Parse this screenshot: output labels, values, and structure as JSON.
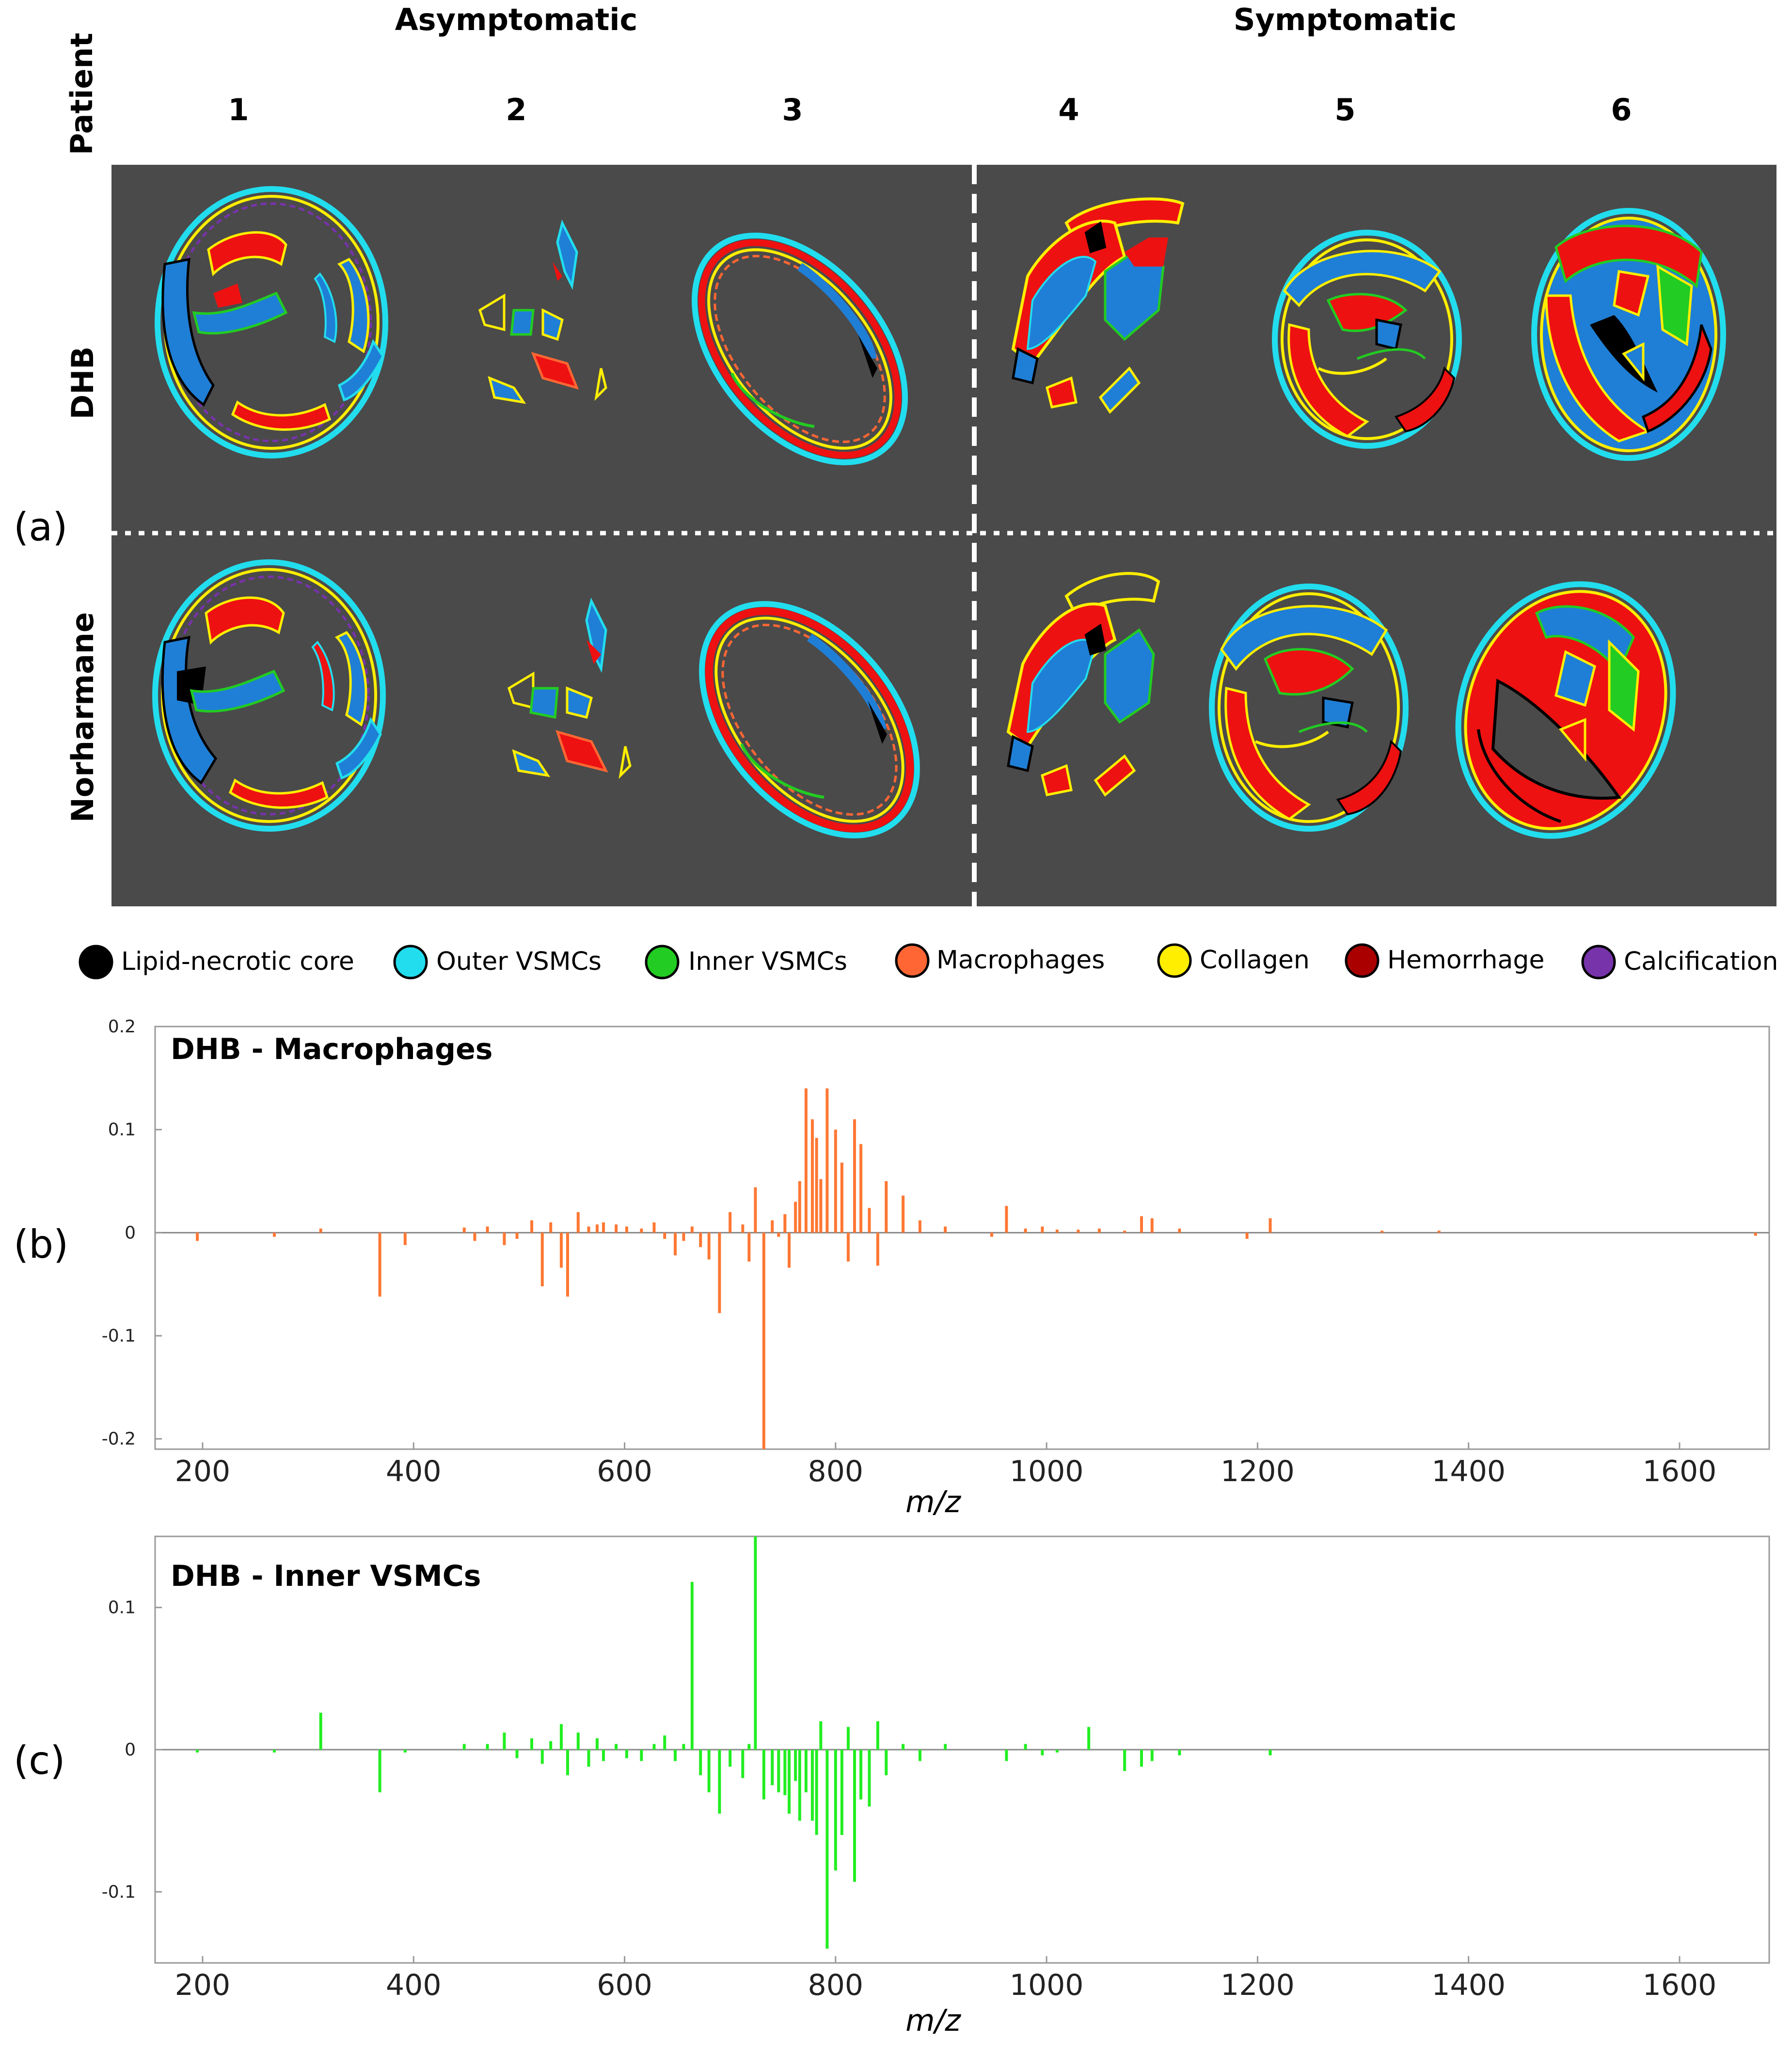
{
  "panel_labels": [
    "(a)",
    "(b)",
    "(c)"
  ],
  "header": {
    "patient_label": "Patient",
    "groups": [
      "Asymptomatic",
      "Symptomatic"
    ],
    "patients": [
      "1",
      "2",
      "3",
      "4",
      "5",
      "6"
    ],
    "rows": [
      "DHB",
      "Norharmane"
    ]
  },
  "legend": [
    {
      "label": "Lipid-necrotic core",
      "color": "#000000"
    },
    {
      "label": "Outer VSMCs",
      "color": "#22ddee"
    },
    {
      "label": "Inner VSMCs",
      "color": "#22cc22"
    },
    {
      "label": "Macrophages",
      "color": "#ff6633"
    },
    {
      "label": "Collagen",
      "color": "#ffee00"
    },
    {
      "label": "Hemorrhage",
      "color": "#aa0000"
    },
    {
      "label": "Calcification",
      "color": "#7733aa"
    }
  ],
  "chart_data": [
    {
      "type": "bar",
      "title": "DHB - Macrophages",
      "xlabel": "m/z",
      "ylabel": "",
      "xlim": [
        155,
        1685
      ],
      "ylim": [
        -0.21,
        0.2
      ],
      "xticks": [
        "200",
        "400",
        "600",
        "800",
        "1000",
        "1200",
        "1400",
        "1600"
      ],
      "yticks": [
        "0.2",
        "0.1",
        "0",
        "-0.1",
        "-0.2"
      ],
      "color": "#ff7733",
      "x": [
        195,
        268,
        312,
        368,
        392,
        448,
        458,
        470,
        486,
        498,
        512,
        522,
        530,
        540,
        546,
        556,
        566,
        574,
        580,
        592,
        602,
        616,
        628,
        638,
        648,
        656,
        664,
        672,
        680,
        690,
        700,
        712,
        718,
        724,
        732,
        740,
        746,
        752,
        756,
        762,
        766,
        772,
        778,
        782,
        786,
        792,
        800,
        806,
        812,
        818,
        824,
        832,
        840,
        848,
        864,
        880,
        904,
        948,
        962,
        980,
        996,
        1010,
        1030,
        1050,
        1074,
        1090,
        1100,
        1126,
        1190,
        1212,
        1318,
        1372,
        1672
      ],
      "values": [
        -0.008,
        -0.004,
        0.004,
        -0.062,
        -0.012,
        0.005,
        -0.008,
        0.006,
        -0.012,
        -0.006,
        0.012,
        -0.052,
        0.01,
        -0.034,
        -0.062,
        0.02,
        0.006,
        0.008,
        0.01,
        0.008,
        0.006,
        0.004,
        0.01,
        -0.006,
        -0.022,
        -0.008,
        0.006,
        -0.014,
        -0.026,
        -0.078,
        0.02,
        0.008,
        -0.028,
        0.044,
        -0.21,
        0.012,
        -0.004,
        0.018,
        -0.034,
        0.03,
        0.05,
        0.14,
        0.11,
        0.092,
        0.052,
        0.14,
        0.1,
        0.068,
        -0.028,
        0.11,
        0.086,
        0.024,
        -0.032,
        0.05,
        0.036,
        0.012,
        0.006,
        -0.004,
        0.026,
        0.004,
        0.006,
        0.003,
        0.003,
        0.004,
        0.002,
        0.016,
        0.014,
        0.004,
        -0.006,
        0.014,
        0.002,
        0.002,
        -0.003
      ]
    },
    {
      "type": "bar",
      "title": "DHB - Inner VSMCs",
      "xlabel": "m/z",
      "ylabel": "",
      "xlim": [
        155,
        1685
      ],
      "ylim": [
        -0.15,
        0.15
      ],
      "xticks": [
        "200",
        "400",
        "600",
        "800",
        "1000",
        "1200",
        "1400",
        "1600"
      ],
      "yticks": [
        "0.1",
        "0",
        "-0.1"
      ],
      "color": "#22ee22",
      "x": [
        195,
        268,
        312,
        368,
        392,
        448,
        470,
        486,
        498,
        512,
        522,
        530,
        540,
        546,
        556,
        566,
        574,
        580,
        592,
        602,
        616,
        628,
        638,
        648,
        656,
        664,
        672,
        680,
        690,
        700,
        712,
        718,
        724,
        732,
        740,
        746,
        752,
        756,
        762,
        766,
        772,
        778,
        782,
        786,
        792,
        800,
        806,
        812,
        818,
        824,
        832,
        840,
        848,
        864,
        880,
        904,
        962,
        980,
        996,
        1010,
        1040,
        1074,
        1090,
        1100,
        1126,
        1212
      ],
      "values": [
        -0.002,
        -0.002,
        0.026,
        -0.03,
        -0.002,
        0.004,
        0.004,
        0.012,
        -0.006,
        0.008,
        -0.01,
        0.006,
        0.018,
        -0.018,
        0.012,
        -0.012,
        0.008,
        -0.008,
        0.004,
        -0.006,
        -0.008,
        0.004,
        0.01,
        -0.008,
        0.004,
        0.118,
        -0.018,
        -0.03,
        -0.045,
        -0.012,
        -0.02,
        0.004,
        0.15,
        -0.035,
        -0.025,
        -0.03,
        -0.032,
        -0.045,
        -0.022,
        -0.05,
        -0.03,
        -0.05,
        -0.06,
        0.02,
        -0.14,
        -0.085,
        -0.06,
        0.016,
        -0.093,
        -0.035,
        -0.04,
        0.02,
        -0.018,
        0.004,
        -0.008,
        0.004,
        -0.008,
        0.004,
        -0.004,
        -0.002,
        0.016,
        -0.015,
        -0.012,
        -0.008,
        -0.004,
        -0.004
      ]
    }
  ]
}
